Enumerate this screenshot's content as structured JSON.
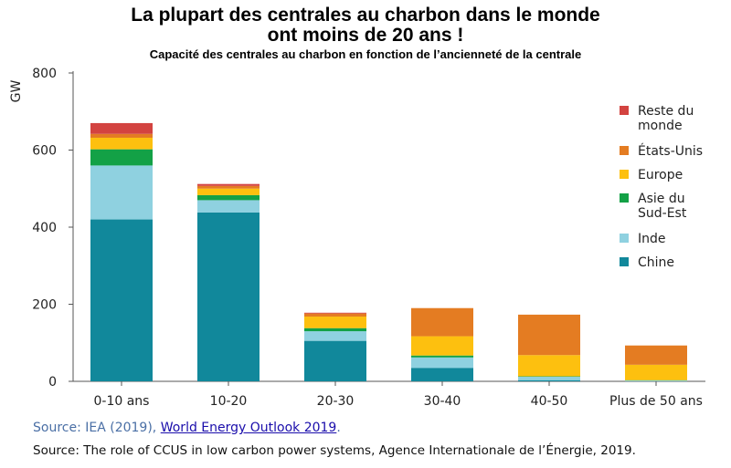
{
  "header": {
    "title_line1": "La plupart des centrales au charbon dans le monde",
    "title_line2": "ont moins de 20 ans !",
    "subtitle": "Capacité des centrales au charbon en fonction de l’ancienneté de la centrale"
  },
  "chart_data": {
    "type": "bar",
    "stacked": true,
    "categories": [
      "0-10 ans",
      "10-20",
      "20-30",
      "30-40",
      "40-50",
      "Plus de 50 ans"
    ],
    "ylabel": "GW",
    "xlabel": "",
    "ylim": [
      0,
      800
    ],
    "yticks": [
      0,
      200,
      400,
      600,
      800
    ],
    "grid": false,
    "legend_position": "right",
    "series": [
      {
        "name": "Chine",
        "color": "#11889b",
        "values": [
          420,
          438,
          105,
          35,
          3,
          0
        ]
      },
      {
        "name": "Inde",
        "color": "#8fd1e0",
        "values": [
          140,
          32,
          25,
          27,
          9,
          2
        ]
      },
      {
        "name": "Asie du Sud-Est",
        "color": "#13a146",
        "values": [
          42,
          13,
          8,
          5,
          1,
          1
        ]
      },
      {
        "name": "Europe",
        "color": "#fdc00f",
        "values": [
          30,
          17,
          30,
          50,
          55,
          40
        ]
      },
      {
        "name": "États-Unis",
        "color": "#e47c22",
        "values": [
          10,
          7,
          8,
          73,
          105,
          50
        ]
      },
      {
        "name": "Reste du monde",
        "color": "#d34340",
        "values": [
          28,
          5,
          2,
          0,
          0,
          0
        ]
      }
    ],
    "legend_entries": [
      {
        "lines": [
          "Reste du",
          "monde"
        ],
        "color": "#d34340"
      },
      {
        "lines": [
          "États-Unis"
        ],
        "color": "#e47c22"
      },
      {
        "lines": [
          "Europe"
        ],
        "color": "#fdc00f"
      },
      {
        "lines": [
          "Asie du",
          "Sud-Est"
        ],
        "color": "#13a146"
      },
      {
        "lines": [
          "Inde"
        ],
        "color": "#8fd1e0"
      },
      {
        "lines": [
          "Chine"
        ],
        "color": "#11889b"
      }
    ]
  },
  "sources": {
    "line1_prefix": "Source: IEA (2019), ",
    "line1_link": "World Energy Outlook 2019",
    "line1_suffix": ".",
    "line2": "Source: The role of CCUS in low carbon power systems, Agence Internationale de l’Énergie, 2019."
  }
}
